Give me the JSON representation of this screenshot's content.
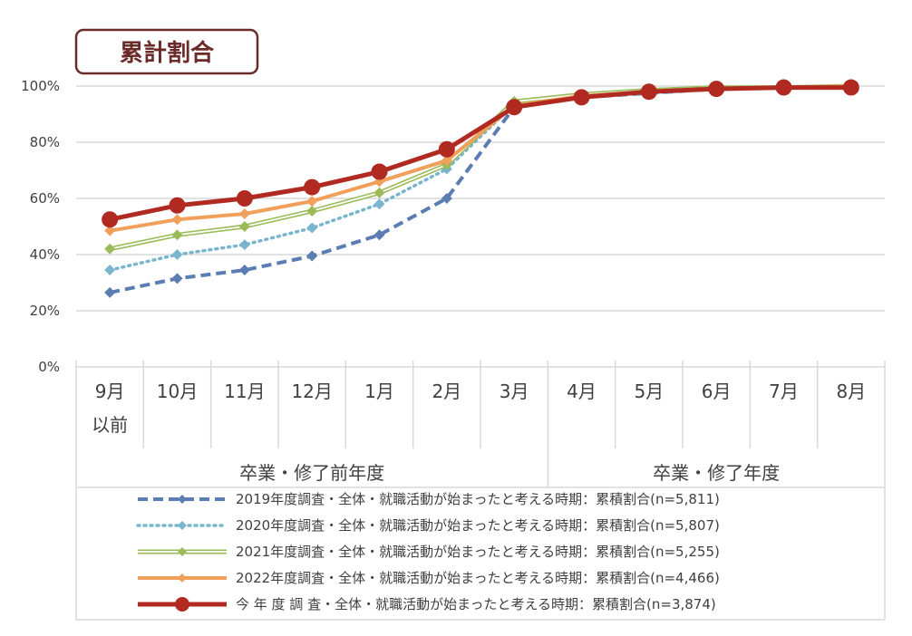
{
  "chart_data": {
    "type": "line",
    "title": "累計割合",
    "categories": [
      [
        "9月",
        "以前"
      ],
      [
        "10月"
      ],
      [
        "11月"
      ],
      [
        "12月"
      ],
      [
        "1月"
      ],
      [
        "2月"
      ],
      [
        "3月"
      ],
      [
        "4月"
      ],
      [
        "5月"
      ],
      [
        "6月"
      ],
      [
        "7月"
      ],
      [
        "8月"
      ]
    ],
    "groups": [
      {
        "label": "卒業・修了前年度",
        "span": 7
      },
      {
        "label": "卒業・修了年度",
        "span": 5
      }
    ],
    "y_ticks": [
      "0%",
      "20%",
      "40%",
      "60%",
      "80%",
      "100%"
    ],
    "ylim": [
      0,
      100
    ],
    "grid": true,
    "legend_position": "bottom",
    "series": [
      {
        "name": "2019年度調査・全体・就職活動が始まったと考える時期：累積割合(n=5,811)",
        "color": "#5b7db3",
        "style": "dashed",
        "marker": "diamond",
        "values": [
          26.5,
          31.5,
          34.5,
          39.5,
          47,
          60,
          92.5,
          96,
          97.5,
          99,
          99.5,
          100
        ]
      },
      {
        "name": "2020年度調査・全体・就職活動が始まったと考える時期：累積割合(n=5,807)",
        "color": "#79b6cd",
        "style": "dotted",
        "marker": "diamond",
        "values": [
          34.5,
          40,
          43.5,
          49.5,
          58,
          70.5,
          93.5,
          96.5,
          97.5,
          99,
          99.5,
          100
        ]
      },
      {
        "name": "2021年度調査・全体・就職活動が始まったと考える時期：累積割合(n=5,255)",
        "color": "#9bbb59",
        "style": "double",
        "marker": "diamond",
        "values": [
          42,
          47,
          50,
          55.5,
          62,
          72,
          94.5,
          97,
          98.5,
          99.5,
          99.5,
          100
        ]
      },
      {
        "name": "2022年度調査・全体・就職活動が始まったと考える時期：累積割合(n=4,466)",
        "color": "#f0a05a",
        "style": "solid",
        "marker": "diamond",
        "values": [
          48.5,
          52.5,
          54.5,
          59,
          66,
          73.5,
          93,
          96.5,
          98,
          99,
          99.5,
          100
        ]
      },
      {
        "name": "今 年 度 調 査・全体・就職活動が始まったと考える時期：累積割合(n=3,874)",
        "color": "#b02a22",
        "style": "solid-thick",
        "marker": "circle",
        "values": [
          52.5,
          57.5,
          60,
          64,
          69.5,
          77.5,
          92.5,
          96,
          98,
          99,
          99.5,
          99.5
        ]
      }
    ]
  }
}
